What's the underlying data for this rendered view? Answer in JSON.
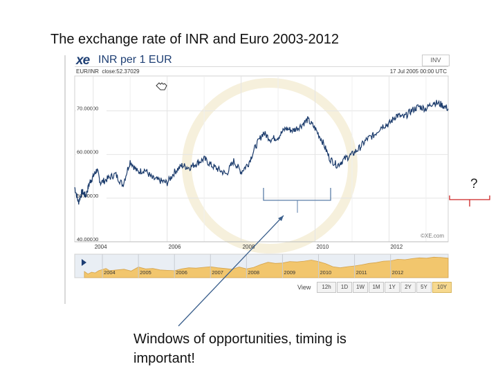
{
  "slide": {
    "title": "The exchange rate of INR and Euro 2003-2012",
    "annotation": "Windows of opportunities, timing is important!",
    "question_mark": "?"
  },
  "widget": {
    "logo_text": "xe",
    "pair_title": "INR per 1 EUR",
    "invert_button": "INV",
    "symbol": "EUR/INR",
    "close_text": "close:52.37029",
    "timestamp": "17 Jul 2005 00:00 UTC",
    "watermark": "©XE.com",
    "view_label": "View",
    "view_buttons": [
      "12h",
      "1D",
      "1W",
      "1M",
      "1Y",
      "2Y",
      "5Y",
      "10Y"
    ],
    "active_view": "10Y"
  },
  "colors": {
    "line": "#1a3a6b",
    "nav_fill": "#f2c66d",
    "nav_bg": "#e9eef4",
    "highlight_bracket": "#5a7ea8",
    "question_bracket": "#cc2222",
    "arrow": "#3a5f8c"
  },
  "chart_data": {
    "type": "line",
    "title": "INR per 1 EUR",
    "xlabel": "",
    "ylabel": "",
    "y_ticks": [
      "40.00000",
      "50.00000",
      "60.00000",
      "70.00000"
    ],
    "ylim": [
      40,
      78
    ],
    "x_ticks": [
      "2004",
      "2006",
      "2008",
      "2010",
      "2012"
    ],
    "navigator_ticks": [
      "2004",
      "2005",
      "2006",
      "2007",
      "2008",
      "2009",
      "2010",
      "2011",
      "2012"
    ],
    "grid": true,
    "series": [
      {
        "name": "INR per 1 EUR",
        "x": [
          2003.5,
          2003.6,
          2003.7,
          2003.8,
          2003.9,
          2004.0,
          2004.1,
          2004.2,
          2004.4,
          2004.6,
          2004.8,
          2005.0,
          2005.2,
          2005.4,
          2005.6,
          2005.8,
          2006.0,
          2006.2,
          2006.4,
          2006.6,
          2006.8,
          2007.0,
          2007.2,
          2007.4,
          2007.6,
          2007.8,
          2008.0,
          2008.2,
          2008.4,
          2008.6,
          2008.8,
          2009.0,
          2009.2,
          2009.4,
          2009.6,
          2009.8,
          2010.0,
          2010.2,
          2010.4,
          2010.6,
          2010.8,
          2011.0,
          2011.2,
          2011.4,
          2011.6,
          2011.8,
          2012.0,
          2012.2,
          2012.4,
          2012.6,
          2012.8,
          2013.0,
          2013.2,
          2013.4,
          2013.6
        ],
        "values": [
          52.5,
          49.0,
          51.5,
          50.5,
          53.5,
          55.0,
          56.5,
          53.5,
          54.5,
          55.5,
          53.0,
          58.5,
          56.0,
          56.5,
          54.5,
          54.0,
          53.5,
          56.0,
          57.5,
          57.0,
          58.0,
          59.0,
          57.5,
          56.5,
          55.5,
          58.5,
          56.0,
          58.0,
          62.0,
          65.0,
          63.5,
          64.0,
          66.0,
          65.5,
          66.5,
          68.0,
          66.0,
          63.0,
          59.0,
          57.5,
          59.0,
          60.0,
          61.5,
          63.5,
          64.5,
          66.5,
          67.0,
          69.0,
          68.5,
          70.0,
          71.0,
          70.5,
          72.0,
          71.5,
          70.5
        ]
      }
    ]
  }
}
